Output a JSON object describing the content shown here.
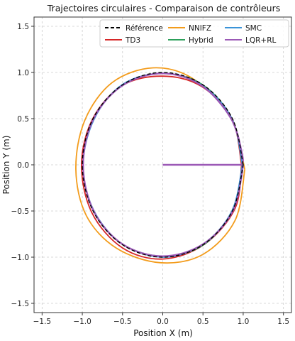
{
  "chart_data": {
    "type": "line",
    "title": "Trajectoires circulaires - Comparaison de contrôleurs",
    "xlabel": "Position X (m)",
    "ylabel": "Position Y (m)",
    "xlim": [
      -1.6,
      1.6
    ],
    "ylim": [
      -1.6,
      1.6
    ],
    "xticks": [
      -1.5,
      -1.0,
      -0.5,
      0.0,
      0.5,
      1.0,
      1.5
    ],
    "yticks": [
      -1.5,
      -1.0,
      -0.5,
      0.0,
      0.5,
      1.0,
      1.5
    ],
    "xtick_labels": [
      "−1.5",
      "−1.0",
      "−0.5",
      "0.0",
      "0.5",
      "1.0",
      "1.5"
    ],
    "ytick_labels": [
      "−1.5",
      "−1.0",
      "−0.5",
      "0.0",
      "0.5",
      "1.0",
      "1.5"
    ],
    "grid": true,
    "legend_position": "top-right",
    "legend_columns": 3,
    "series": [
      {
        "name": "Référence",
        "color": "#000000",
        "dash": "dashed",
        "x": [
          1.0,
          0.866,
          0.5,
          0.0,
          -0.5,
          -0.866,
          -1.0,
          -0.866,
          -0.5,
          0.0,
          0.5,
          0.866,
          1.0
        ],
        "y": [
          0.0,
          0.5,
          0.866,
          1.0,
          0.866,
          0.5,
          0.0,
          -0.5,
          -0.866,
          -1.0,
          -0.866,
          -0.5,
          0.0
        ]
      },
      {
        "name": "TD3",
        "color": "#d62728",
        "dash": "solid",
        "x": [
          0.98,
          0.86,
          0.48,
          0.0,
          -0.5,
          -0.87,
          -1.01,
          -0.88,
          -0.5,
          0.0,
          0.52,
          0.9,
          0.98
        ],
        "y": [
          0.0,
          0.5,
          0.85,
          0.96,
          0.86,
          0.5,
          0.0,
          -0.52,
          -0.9,
          -1.02,
          -0.86,
          -0.47,
          0.0
        ]
      },
      {
        "name": "NNIFZ",
        "color": "#f39c1c",
        "dash": "solid",
        "x": [
          1.02,
          0.85,
          0.38,
          -0.12,
          -0.63,
          -0.97,
          -1.08,
          -0.95,
          -0.58,
          -0.03,
          0.5,
          0.9,
          1.02
        ],
        "y": [
          -0.05,
          0.5,
          0.93,
          1.05,
          0.89,
          0.48,
          -0.05,
          -0.55,
          -0.9,
          -1.06,
          -0.97,
          -0.6,
          -0.05
        ]
      },
      {
        "name": "Hybrid",
        "color": "#2ca05a",
        "dash": "solid",
        "x": [
          1.0,
          0.86,
          0.49,
          -0.01,
          -0.5,
          -0.86,
          -0.99,
          -0.86,
          -0.5,
          0.0,
          0.5,
          0.86,
          1.0
        ],
        "y": [
          0.0,
          0.5,
          0.87,
          0.99,
          0.86,
          0.5,
          0.0,
          -0.5,
          -0.86,
          -0.99,
          -0.87,
          -0.5,
          0.0
        ]
      },
      {
        "name": "SMC",
        "color": "#3a93d8",
        "dash": "solid",
        "x": [
          0.99,
          0.86,
          0.49,
          0.0,
          -0.5,
          -0.85,
          -0.99,
          -0.86,
          -0.5,
          0.01,
          0.5,
          0.86,
          0.99
        ],
        "y": [
          0.0,
          0.5,
          0.86,
          0.99,
          0.87,
          0.5,
          0.0,
          -0.49,
          -0.86,
          -1.0,
          -0.86,
          -0.5,
          0.0
        ]
      },
      {
        "name": "LQR+RL",
        "color": "#9b59b6",
        "dash": "solid",
        "x": [
          0.0,
          0.5,
          0.98,
          0.99,
          0.85,
          0.48,
          0.0,
          -0.5,
          -0.86,
          -0.99,
          -0.86,
          -0.5,
          0.0,
          0.5,
          0.87,
          1.0
        ],
        "y": [
          0.0,
          0.0,
          0.0,
          0.1,
          0.5,
          0.86,
          0.99,
          0.86,
          0.5,
          0.0,
          -0.5,
          -0.86,
          -0.99,
          -0.86,
          -0.5,
          0.0
        ]
      }
    ]
  }
}
